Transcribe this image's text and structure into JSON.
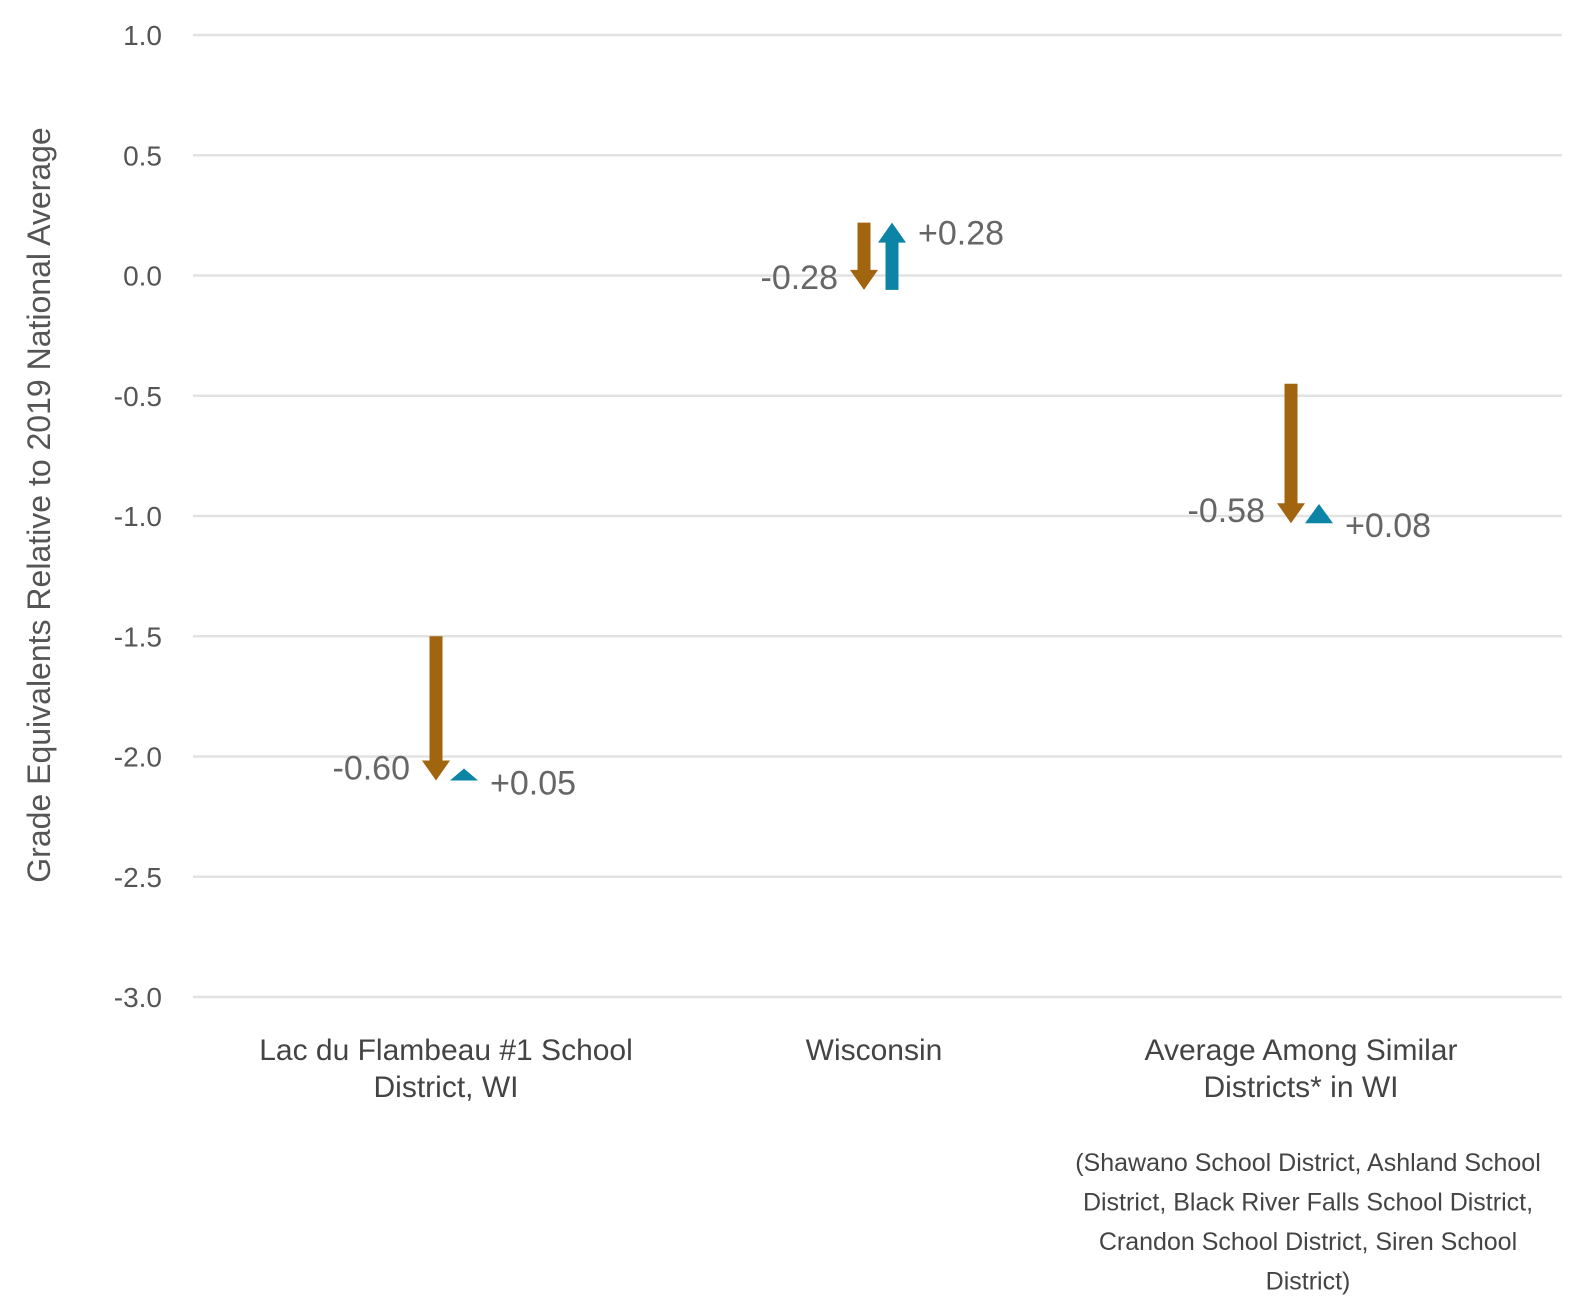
{
  "chart_data": {
    "type": "arrow",
    "ylabel": "Grade Equivalents Relative to 2019 National Average",
    "ylim": [
      -3.0,
      1.0
    ],
    "yticks": [
      "1.0",
      "0.5",
      "0.0",
      "-0.5",
      "-1.0",
      "-1.5",
      "-2.0",
      "-2.5",
      "-3.0"
    ],
    "grid": true,
    "colors": {
      "decline": "#A0650E",
      "recovery": "#0B84A5"
    },
    "categories": [
      {
        "label_lines": [
          "Lac du Flambeau #1 School",
          "District, WI"
        ],
        "start": -1.5,
        "decline": -0.6,
        "recovery": 0.05,
        "decline_label": "-0.60",
        "recovery_label": "+0.05"
      },
      {
        "label_lines": [
          "Wisconsin"
        ],
        "start": 0.22,
        "decline": -0.28,
        "recovery": 0.28,
        "decline_label": "-0.28",
        "recovery_label": "+0.28"
      },
      {
        "label_lines": [
          "Average Among Similar",
          "Districts* in WI"
        ],
        "start": -0.45,
        "decline": -0.58,
        "recovery": 0.08,
        "decline_label": "-0.58",
        "recovery_label": "+0.08"
      }
    ],
    "footnote_lines": [
      "(Shawano School District, Ashland School",
      "District, Black River Falls School District,",
      "Crandon School District, Siren School",
      "District)"
    ]
  }
}
